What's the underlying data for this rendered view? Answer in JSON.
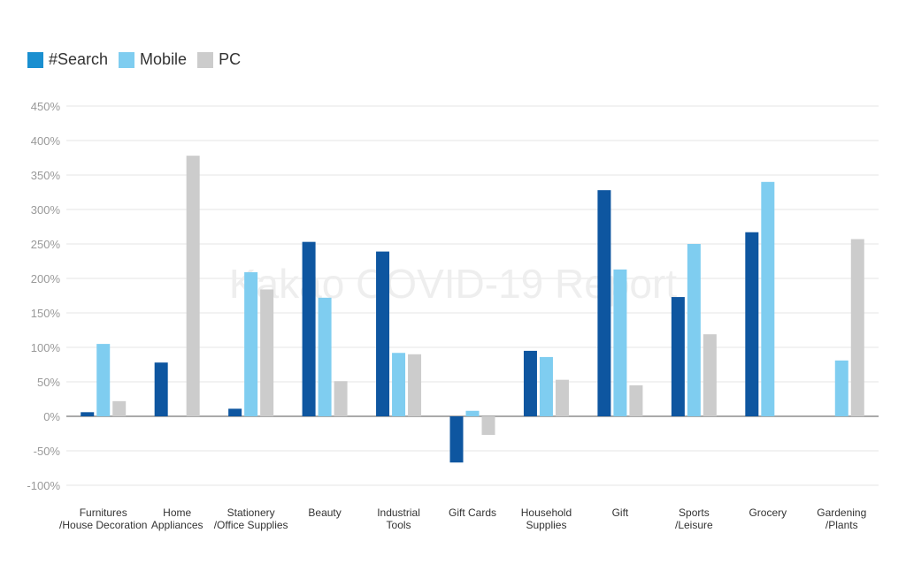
{
  "chart_data": {
    "type": "bar",
    "title": "",
    "xlabel": "",
    "ylabel": "",
    "ylim": [
      -100,
      450
    ],
    "yticks": [
      -100,
      -50,
      0,
      50,
      100,
      150,
      200,
      250,
      300,
      350,
      400,
      450
    ],
    "tick_suffix": "%",
    "grid": true,
    "legend_position": "top-left",
    "watermark": "Kakao COVID-19 Report",
    "categories": [
      [
        "Furnitures",
        "/House Decoration"
      ],
      [
        "Home",
        "Appliances"
      ],
      [
        "Stationery",
        "/Office Supplies"
      ],
      [
        "Beauty"
      ],
      [
        "Industrial",
        "Tools"
      ],
      [
        "Gift Cards"
      ],
      [
        "Household",
        "Supplies"
      ],
      [
        "Gift"
      ],
      [
        "Sports",
        "/Leisure"
      ],
      [
        "Grocery"
      ],
      [
        "Gardening",
        "/Plants"
      ]
    ],
    "series": [
      {
        "name": "#Search",
        "color": "#0e56a0",
        "legend_color": "#1a8fd0",
        "values": [
          6,
          78,
          11,
          253,
          239,
          -67,
          95,
          328,
          173,
          267,
          0
        ]
      },
      {
        "name": "Mobile",
        "color": "#7fcdf0",
        "legend_color": "#7fcdf0",
        "values": [
          105,
          0,
          209,
          172,
          92,
          8,
          86,
          213,
          250,
          340,
          81
        ]
      },
      {
        "name": "PC",
        "color": "#cccccc",
        "legend_color": "#cccccc",
        "values": [
          22,
          378,
          184,
          51,
          90,
          -27,
          53,
          45,
          119,
          0,
          257
        ]
      }
    ]
  }
}
